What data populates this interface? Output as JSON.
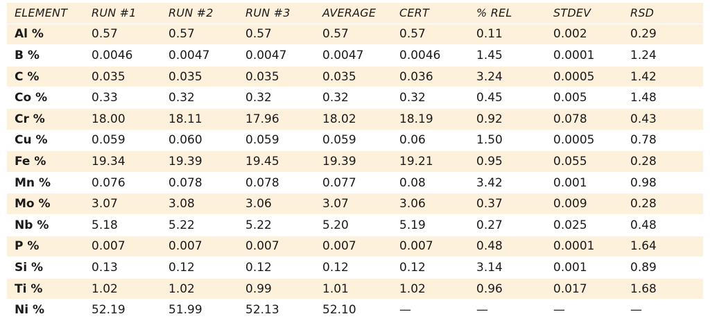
{
  "table": {
    "headers": [
      "ELEMENT",
      "RUN #1",
      "RUN #2",
      "RUN #3",
      "AVERAGE",
      "CERT",
      "% REL",
      "STDEV",
      "RSD"
    ],
    "rows": [
      [
        "Al %",
        "0.57",
        "0.57",
        "0.57",
        "0.57",
        "0.57",
        "0.11",
        "0.002",
        "0.29"
      ],
      [
        "B %",
        "0.0046",
        "0.0047",
        "0.0047",
        "0.0047",
        "0.0046",
        "1.45",
        "0.0001",
        "1.24"
      ],
      [
        "C %",
        "0.035",
        "0.035",
        "0.035",
        "0.035",
        "0.036",
        "3.24",
        "0.0005",
        "1.42"
      ],
      [
        "Co %",
        "0.33",
        "0.32",
        "0.32",
        "0.32",
        "0.32",
        "0.45",
        "0.005",
        "1.48"
      ],
      [
        "Cr %",
        "18.00",
        "18.11",
        "17.96",
        "18.02",
        "18.19",
        "0.92",
        "0.078",
        "0.43"
      ],
      [
        "Cu %",
        "0.059",
        "0.060",
        "0.059",
        "0.059",
        "0.06",
        "1.50",
        "0.0005",
        "0.78"
      ],
      [
        "Fe %",
        "19.34",
        "19.39",
        "19.45",
        "19.39",
        "19.21",
        "0.95",
        "0.055",
        "0.28"
      ],
      [
        "Mn %",
        "0.076",
        "0.078",
        "0.078",
        "0.077",
        "0.08",
        "3.42",
        "0.001",
        "0.98"
      ],
      [
        "Mo %",
        "3.07",
        "3.08",
        "3.06",
        "3.07",
        "3.06",
        "0.37",
        "0.009",
        "0.28"
      ],
      [
        "Nb %",
        "5.18",
        "5.22",
        "5.22",
        "5.20",
        "5.19",
        "0.27",
        "0.025",
        "0.48"
      ],
      [
        "P %",
        "0.007",
        "0.007",
        "0.007",
        "0.007",
        "0.007",
        "0.48",
        "0.0001",
        "1.64"
      ],
      [
        "Si %",
        "0.13",
        "0.12",
        "0.12",
        "0.12",
        "0.12",
        "3.14",
        "0.001",
        "0.89"
      ],
      [
        "Ti %",
        "1.02",
        "1.02",
        "0.99",
        "1.01",
        "1.02",
        "0.96",
        "0.017",
        "1.68"
      ],
      [
        "Ni %",
        "52.19",
        "51.99",
        "52.13",
        "52.10",
        "—",
        "—",
        "—",
        "—"
      ]
    ]
  },
  "colors": {
    "shade_row": "#fdf1dc",
    "text": "#1a1a1a"
  }
}
